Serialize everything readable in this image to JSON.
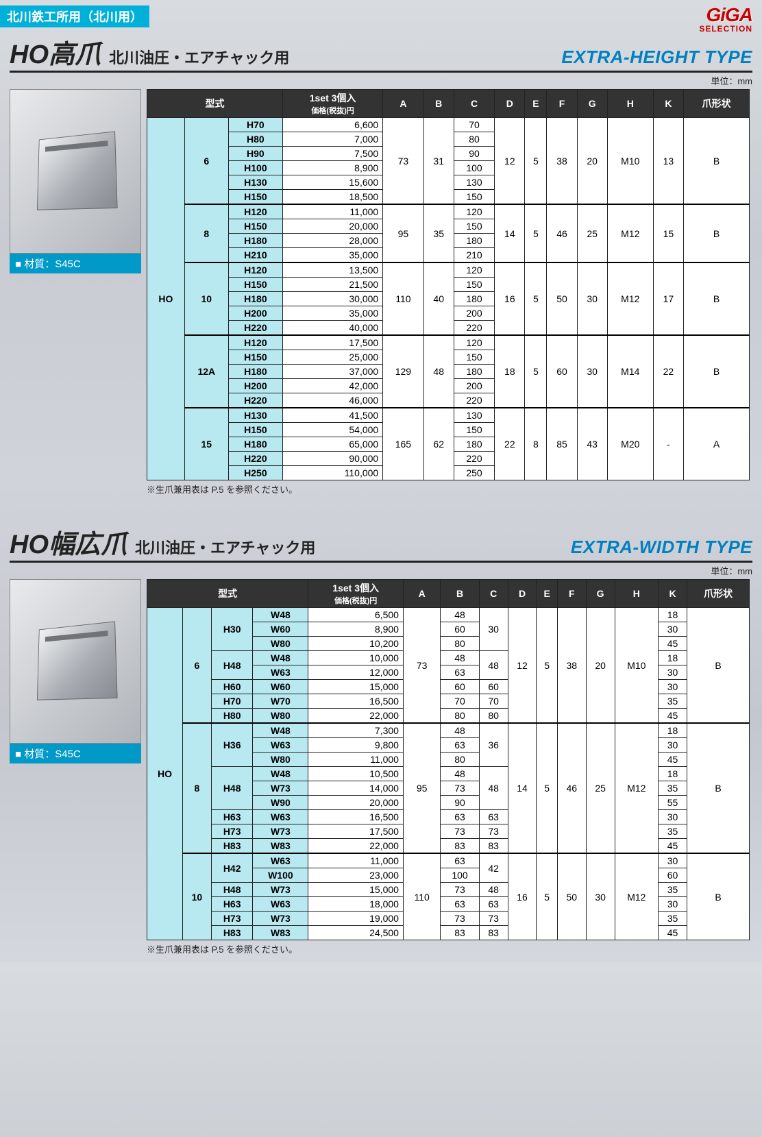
{
  "header": {
    "category": "北川鉄工所用（北川用）",
    "logo_main": "GiGA",
    "logo_sub": "SELECTION"
  },
  "table1": {
    "title": "HO高爪",
    "subtitle": "北川油圧・エアチャック用",
    "type_label": "EXTRA-HEIGHT TYPE",
    "unit": "単位：mm",
    "material": "■ 材質：S45C",
    "headers": {
      "model": "型式",
      "price_l1": "1set 3個入",
      "price_l2": "価格(税抜)円",
      "cols": [
        "A",
        "B",
        "C",
        "D",
        "E",
        "F",
        "G",
        "H",
        "K",
        "爪形状"
      ]
    },
    "series": "HO",
    "groups": [
      {
        "size": "6",
        "A": "73",
        "B": "31",
        "D": "12",
        "E": "5",
        "F": "38",
        "G": "20",
        "H": "M10",
        "K": "13",
        "shape": "B",
        "rows": [
          [
            "H70",
            "6,600",
            "70"
          ],
          [
            "H80",
            "7,000",
            "80"
          ],
          [
            "H90",
            "7,500",
            "90"
          ],
          [
            "H100",
            "8,900",
            "100"
          ],
          [
            "H130",
            "15,600",
            "130"
          ],
          [
            "H150",
            "18,500",
            "150"
          ]
        ]
      },
      {
        "size": "8",
        "A": "95",
        "B": "35",
        "D": "14",
        "E": "5",
        "F": "46",
        "G": "25",
        "H": "M12",
        "K": "15",
        "shape": "B",
        "rows": [
          [
            "H120",
            "11,000",
            "120"
          ],
          [
            "H150",
            "20,000",
            "150"
          ],
          [
            "H180",
            "28,000",
            "180"
          ],
          [
            "H210",
            "35,000",
            "210"
          ]
        ]
      },
      {
        "size": "10",
        "A": "110",
        "B": "40",
        "D": "16",
        "E": "5",
        "F": "50",
        "G": "30",
        "H": "M12",
        "K": "17",
        "shape": "B",
        "rows": [
          [
            "H120",
            "13,500",
            "120"
          ],
          [
            "H150",
            "21,500",
            "150"
          ],
          [
            "H180",
            "30,000",
            "180"
          ],
          [
            "H200",
            "35,000",
            "200"
          ],
          [
            "H220",
            "40,000",
            "220"
          ]
        ]
      },
      {
        "size": "12A",
        "A": "129",
        "B": "48",
        "D": "18",
        "E": "5",
        "F": "60",
        "G": "30",
        "H": "M14",
        "K": "22",
        "shape": "B",
        "rows": [
          [
            "H120",
            "17,500",
            "120"
          ],
          [
            "H150",
            "25,000",
            "150"
          ],
          [
            "H180",
            "37,000",
            "180"
          ],
          [
            "H200",
            "42,000",
            "200"
          ],
          [
            "H220",
            "46,000",
            "220"
          ]
        ]
      },
      {
        "size": "15",
        "A": "165",
        "B": "62",
        "D": "22",
        "E": "8",
        "F": "85",
        "G": "43",
        "H": "M20",
        "K": "-",
        "shape": "A",
        "rows": [
          [
            "H130",
            "41,500",
            "130"
          ],
          [
            "H150",
            "54,000",
            "150"
          ],
          [
            "H180",
            "65,000",
            "180"
          ],
          [
            "H220",
            "90,000",
            "220"
          ],
          [
            "H250",
            "110,000",
            "250"
          ]
        ]
      }
    ],
    "footnote": "※生爪兼用表は P.5 を参照ください。"
  },
  "table2": {
    "title": "HO幅広爪",
    "subtitle": "北川油圧・エアチャック用",
    "type_label": "EXTRA-WIDTH TYPE",
    "unit": "単位：mm",
    "material": "■ 材質：S45C",
    "headers": {
      "model": "型式",
      "price_l1": "1set 3個入",
      "price_l2": "価格(税抜)円",
      "cols": [
        "A",
        "B",
        "C",
        "D",
        "E",
        "F",
        "G",
        "H",
        "K",
        "爪形状"
      ]
    },
    "series": "HO",
    "groups": [
      {
        "size": "6",
        "A": "73",
        "D": "12",
        "E": "5",
        "F": "38",
        "G": "20",
        "H": "M10",
        "shape": "B",
        "subgroups": [
          {
            "h": "H30",
            "C": "30",
            "rows": [
              [
                "W48",
                "6,500",
                "48",
                "18"
              ],
              [
                "W60",
                "8,900",
                "60",
                "30"
              ],
              [
                "W80",
                "10,200",
                "80",
                "45"
              ]
            ]
          },
          {
            "h": "H48",
            "C": "48",
            "rows": [
              [
                "W48",
                "10,000",
                "48",
                "18"
              ],
              [
                "W63",
                "12,000",
                "63",
                "30"
              ]
            ]
          },
          {
            "h": "H60",
            "C": "60",
            "rows": [
              [
                "W60",
                "15,000",
                "60",
                "30"
              ]
            ]
          },
          {
            "h": "H70",
            "C": "70",
            "rows": [
              [
                "W70",
                "16,500",
                "70",
                "35"
              ]
            ]
          },
          {
            "h": "H80",
            "C": "80",
            "rows": [
              [
                "W80",
                "22,000",
                "80",
                "45"
              ]
            ]
          }
        ]
      },
      {
        "size": "8",
        "A": "95",
        "D": "14",
        "E": "5",
        "F": "46",
        "G": "25",
        "H": "M12",
        "shape": "B",
        "subgroups": [
          {
            "h": "H36",
            "C": "36",
            "rows": [
              [
                "W48",
                "7,300",
                "48",
                "18"
              ],
              [
                "W63",
                "9,800",
                "63",
                "30"
              ],
              [
                "W80",
                "11,000",
                "80",
                "45"
              ]
            ]
          },
          {
            "h": "H48",
            "C": "48",
            "rows": [
              [
                "W48",
                "10,500",
                "48",
                "18"
              ],
              [
                "W73",
                "14,000",
                "73",
                "35"
              ],
              [
                "W90",
                "20,000",
                "90",
                "55"
              ]
            ]
          },
          {
            "h": "H63",
            "C": "63",
            "rows": [
              [
                "W63",
                "16,500",
                "63",
                "30"
              ]
            ]
          },
          {
            "h": "H73",
            "C": "73",
            "rows": [
              [
                "W73",
                "17,500",
                "73",
                "35"
              ]
            ]
          },
          {
            "h": "H83",
            "C": "83",
            "rows": [
              [
                "W83",
                "22,000",
                "83",
                "45"
              ]
            ]
          }
        ]
      },
      {
        "size": "10",
        "A": "110",
        "D": "16",
        "E": "5",
        "F": "50",
        "G": "30",
        "H": "M12",
        "shape": "B",
        "subgroups": [
          {
            "h": "H42",
            "C": "42",
            "rows": [
              [
                "W63",
                "11,000",
                "63",
                "30"
              ],
              [
                "W100",
                "23,000",
                "100",
                "60"
              ]
            ]
          },
          {
            "h": "H48",
            "C": "48",
            "rows": [
              [
                "W73",
                "15,000",
                "73",
                "35"
              ]
            ]
          },
          {
            "h": "H63",
            "C": "63",
            "rows": [
              [
                "W63",
                "18,000",
                "63",
                "30"
              ]
            ]
          },
          {
            "h": "H73",
            "C": "73",
            "rows": [
              [
                "W73",
                "19,000",
                "73",
                "35"
              ]
            ]
          },
          {
            "h": "H83",
            "C": "83",
            "rows": [
              [
                "W83",
                "24,500",
                "83",
                "45"
              ]
            ]
          }
        ]
      }
    ],
    "footnote": "※生爪兼用表は P.5 を参照ください。"
  }
}
